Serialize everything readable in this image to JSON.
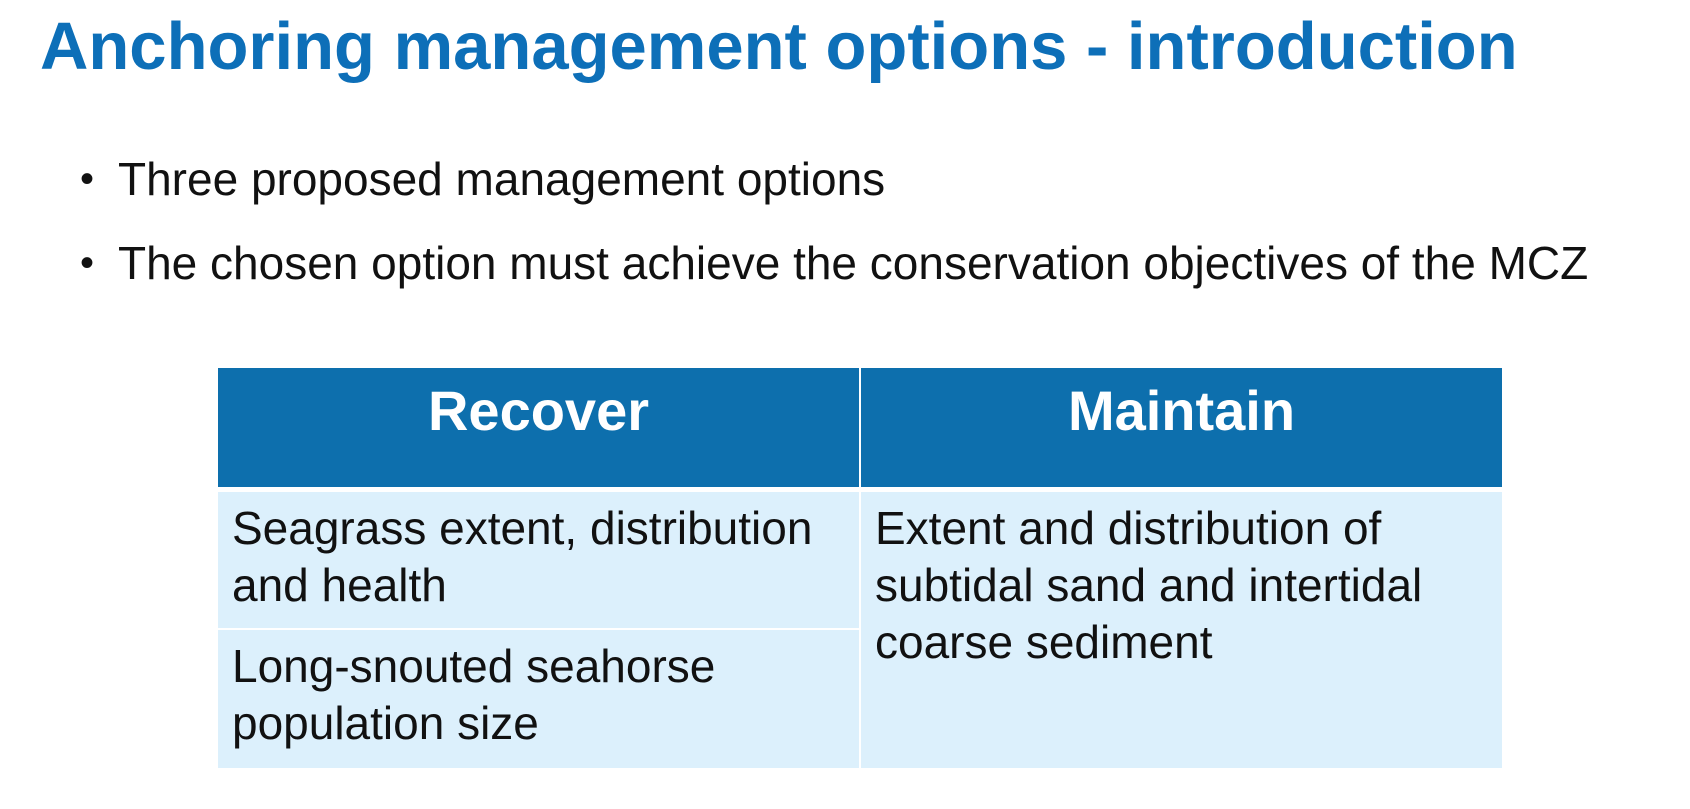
{
  "title": "Anchoring management options - introduction",
  "bullets": [
    "Three proposed management options",
    "The chosen option must achieve the conservation objectives of the MCZ"
  ],
  "bullet_glyph": "•",
  "table": {
    "headers": [
      "Recover",
      "Maintain"
    ],
    "recover_rows": [
      "Seagrass extent, distribution and health",
      "Long-snouted seahorse population size"
    ],
    "maintain_cell": "Extent and distribution of subtidal sand and intertidal coarse sediment"
  },
  "colors": {
    "title": "#0d6fb8",
    "header_bg": "#0d6fad",
    "cell_bg": "#dcf0fc"
  }
}
